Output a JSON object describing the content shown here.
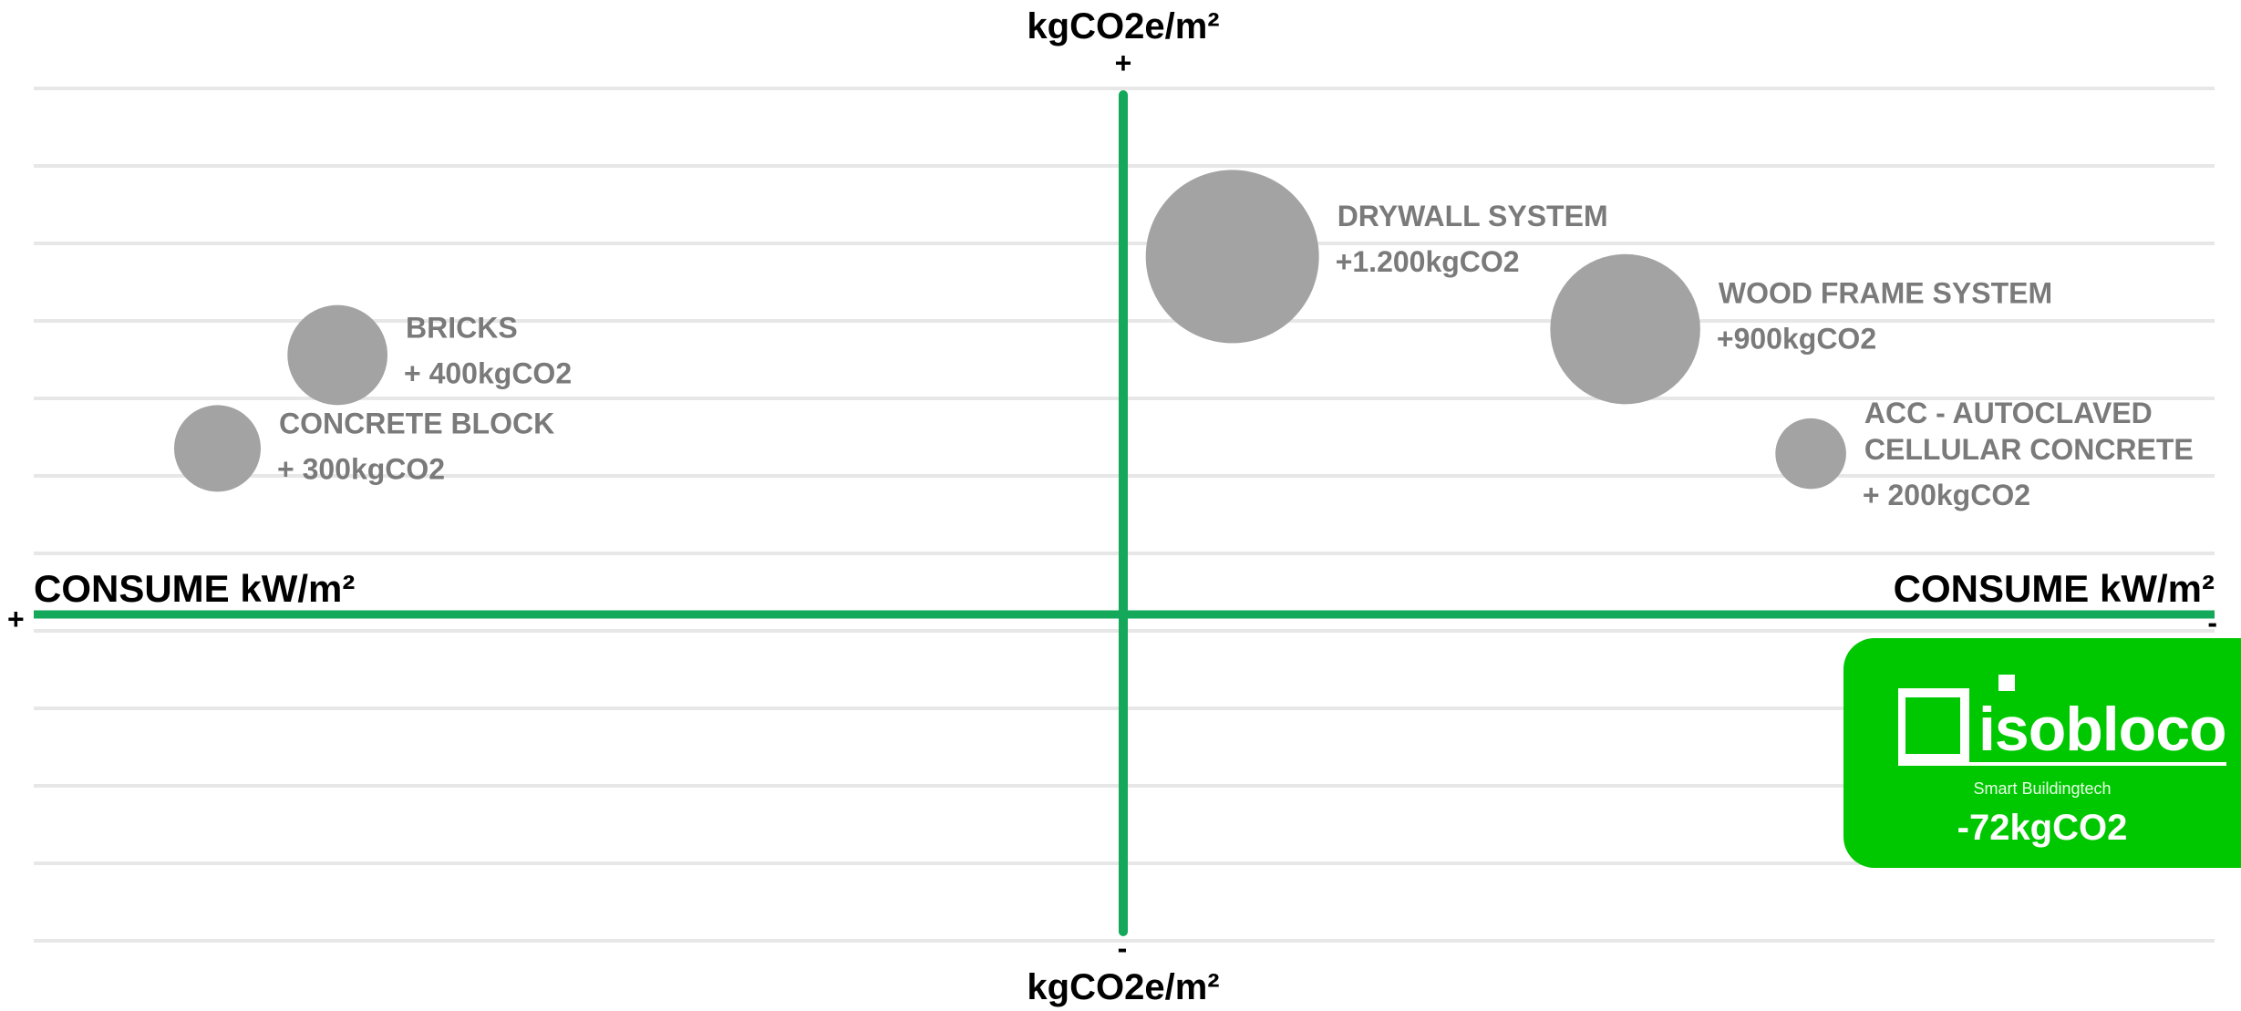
{
  "chart_data": {
    "type": "scatter",
    "y_axis": {
      "label_top": "kgCO2e/m²",
      "label_bottom": "kgCO2e/m²",
      "sign_top": "+",
      "sign_bottom": "-"
    },
    "x_axis": {
      "label_left": "CONSUME kW/m²",
      "label_right": "CONSUME kW/m²",
      "sign_left": "+",
      "sign_right": "-"
    },
    "bubbles": [
      {
        "name": "DRYWALL SYSTEM",
        "value_label": "+1.200kgCO2",
        "co2": 1200,
        "x": 0.1,
        "y": 0.69
      },
      {
        "name": "WOOD FRAME SYSTEM",
        "value_label": "+900kgCO2",
        "co2": 900,
        "x": 0.46,
        "y": 0.55
      },
      {
        "name": "ACC - AUTOCLAVED CELLULAR CONCRETE",
        "name_lines": [
          "ACC - AUTOCLAVED",
          "CELLULAR CONCRETE"
        ],
        "value_label": "+ 200kgCO2",
        "co2": 200,
        "x": 0.63,
        "y": 0.31
      },
      {
        "name": "BRICKS",
        "value_label": "+ 400kgCO2",
        "co2": 400,
        "x": -0.72,
        "y": 0.5
      },
      {
        "name": "CONCRETE BLOCK",
        "value_label": "+ 300kgCO2",
        "co2": 300,
        "x": -0.83,
        "y": 0.32
      }
    ],
    "highlight": {
      "brand": "isobloco",
      "tagline": "Smart Buildingtech",
      "value_label": "-72kgCO2",
      "co2": -72
    },
    "colors": {
      "axis": "#13a85a",
      "gridline": "#e7e7e7",
      "bubble": "#a3a3a3",
      "bubble_label": "#7a7a7a",
      "highlight_bg": "#00c800"
    },
    "grid": true
  }
}
